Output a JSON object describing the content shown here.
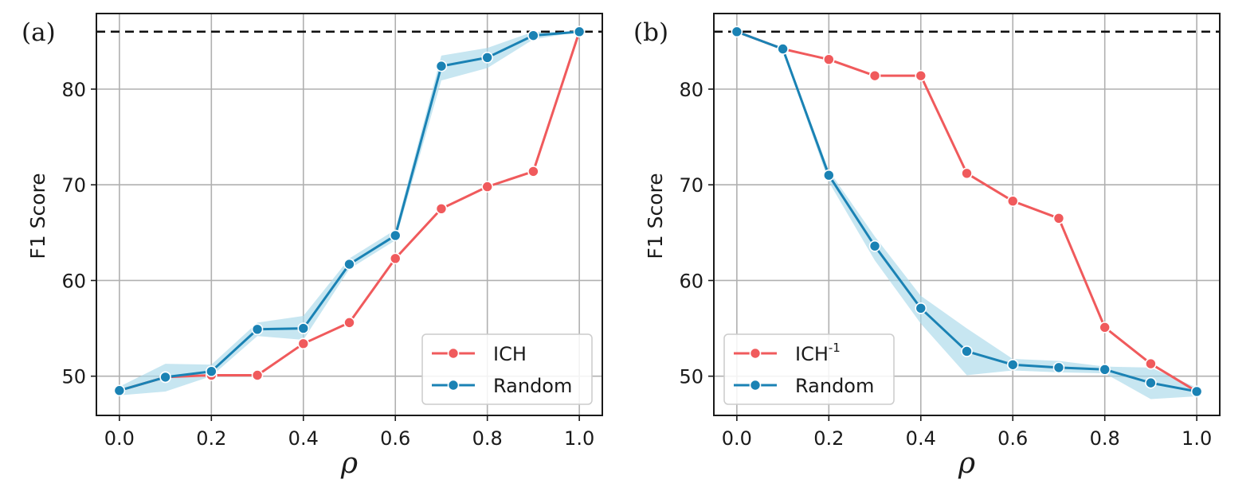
{
  "chart_data": [
    {
      "type": "line",
      "panel_label": "(a)",
      "xlabel": "ρ",
      "ylabel": "F1 Score",
      "xlim": [
        -0.05,
        1.05
      ],
      "ylim": [
        45.9,
        87.9
      ],
      "xticks": [
        "0.0",
        "0.2",
        "0.4",
        "0.6",
        "0.8",
        "1.0"
      ],
      "yticks": [
        "50",
        "60",
        "70",
        "80"
      ],
      "grid": true,
      "reference_line": 86.0,
      "legend": "bottom-right",
      "x": [
        0.0,
        0.1,
        0.2,
        0.3,
        0.4,
        0.5,
        0.6,
        0.7,
        0.8,
        0.9,
        1.0
      ],
      "series": [
        {
          "name": "ICH",
          "sup": "",
          "color": "#f05a5c",
          "values": [
            48.5,
            49.9,
            50.1,
            50.1,
            53.4,
            55.6,
            62.3,
            67.5,
            69.8,
            71.4,
            86.0
          ]
        },
        {
          "name": "Random",
          "sup": "",
          "color": "#1a82b4",
          "band_color": "#a9d8ea",
          "values": [
            48.5,
            49.9,
            50.5,
            54.9,
            55.0,
            61.7,
            64.7,
            82.4,
            83.3,
            85.6,
            86.0
          ],
          "lower": [
            48.0,
            48.4,
            50.0,
            54.2,
            53.8,
            61.2,
            64.2,
            80.9,
            82.2,
            85.2,
            86.0
          ],
          "upper": [
            48.9,
            51.3,
            51.2,
            55.6,
            56.3,
            62.3,
            65.3,
            83.5,
            84.3,
            86.0,
            86.0
          ]
        }
      ]
    },
    {
      "type": "line",
      "panel_label": "(b)",
      "xlabel": "ρ",
      "ylabel": "F1 Score",
      "xlim": [
        -0.05,
        1.05
      ],
      "ylim": [
        45.9,
        87.9
      ],
      "xticks": [
        "0.0",
        "0.2",
        "0.4",
        "0.6",
        "0.8",
        "1.0"
      ],
      "yticks": [
        "50",
        "60",
        "70",
        "80"
      ],
      "grid": true,
      "reference_line": 86.0,
      "legend": "bottom-left",
      "x": [
        0.0,
        0.1,
        0.2,
        0.3,
        0.4,
        0.5,
        0.6,
        0.7,
        0.8,
        0.9,
        1.0
      ],
      "series": [
        {
          "name": "ICH",
          "sup": "-1",
          "color": "#f05a5c",
          "values": [
            86.0,
            84.2,
            83.1,
            81.4,
            81.4,
            71.2,
            68.3,
            66.5,
            55.1,
            51.3,
            48.4
          ]
        },
        {
          "name": "Random",
          "sup": "",
          "color": "#1a82b4",
          "band_color": "#a9d8ea",
          "values": [
            86.0,
            84.2,
            71.0,
            63.6,
            57.1,
            52.6,
            51.2,
            50.9,
            50.7,
            49.3,
            48.4
          ],
          "lower": [
            86.0,
            84.0,
            70.3,
            62.1,
            55.5,
            50.1,
            50.6,
            50.4,
            50.3,
            47.6,
            47.9
          ],
          "upper": [
            86.0,
            84.4,
            71.5,
            64.6,
            58.4,
            55.0,
            51.8,
            51.6,
            51.0,
            50.9,
            48.8
          ]
        }
      ]
    }
  ]
}
